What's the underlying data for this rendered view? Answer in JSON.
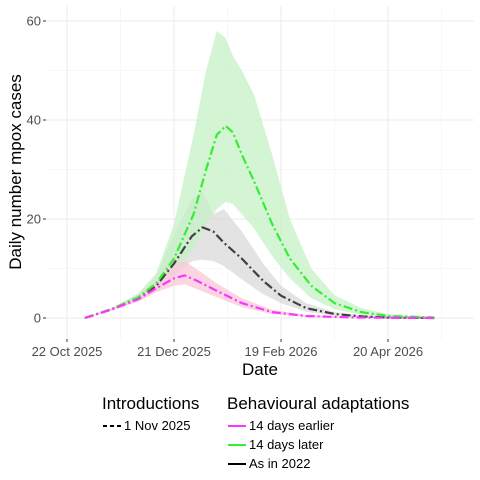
{
  "chart_data": {
    "type": "line",
    "xlabel": "Date",
    "ylabel": "Daily number mpox cases",
    "x_ticks": [
      "22 Oct 2025",
      "21 Dec 2025",
      "19 Feb 2026",
      "20 Apr 2026"
    ],
    "ylim": [
      0,
      60
    ],
    "y_ticks": [
      0,
      20,
      40,
      60
    ],
    "grid": true,
    "legend_position": "bottom",
    "legend": {
      "introductions": {
        "title": "Introductions",
        "items": [
          {
            "label": "1 Nov 2025",
            "linetype": "dashed"
          }
        ]
      },
      "adaptations": {
        "title": "Behavioural adaptations",
        "items": [
          {
            "label": "14 days earlier",
            "color": "#ff33ff"
          },
          {
            "label": "14 days later",
            "color": "#33ee33"
          },
          {
            "label": "As in 2022",
            "color": "#000000"
          }
        ]
      }
    },
    "series": [
      {
        "name": "As in 2022",
        "color": "#404040",
        "fill": "#d9d9d9",
        "points": [
          {
            "date": "2025-11-01",
            "y": 0,
            "lo": 0,
            "hi": 0
          },
          {
            "date": "2025-11-16",
            "y": 1.8,
            "lo": 1.6,
            "hi": 2
          },
          {
            "date": "2025-12-01",
            "y": 4,
            "lo": 3.5,
            "hi": 4.8
          },
          {
            "date": "2025-12-11",
            "y": 6.5,
            "lo": 5.5,
            "hi": 8.5
          },
          {
            "date": "2025-12-21",
            "y": 11,
            "lo": 8.5,
            "hi": 17
          },
          {
            "date": "2025-12-31",
            "y": 16.5,
            "lo": 11.5,
            "hi": 24
          },
          {
            "date": "2026-01-06",
            "y": 18.3,
            "lo": 11.8,
            "hi": 25.5
          },
          {
            "date": "2026-01-12",
            "y": 17.5,
            "lo": 11.5,
            "hi": 21
          },
          {
            "date": "2026-01-18",
            "y": 15.2,
            "lo": 10.5,
            "hi": 22
          },
          {
            "date": "2026-01-28",
            "y": 12,
            "lo": 7.8,
            "hi": 17.5
          },
          {
            "date": "2026-02-09",
            "y": 7.5,
            "lo": 4.8,
            "hi": 11
          },
          {
            "date": "2026-02-19",
            "y": 4.5,
            "lo": 3,
            "hi": 6.5
          },
          {
            "date": "2026-03-05",
            "y": 2,
            "lo": 1.3,
            "hi": 3
          },
          {
            "date": "2026-03-21",
            "y": 0.8,
            "lo": 0.5,
            "hi": 1.2
          },
          {
            "date": "2026-04-06",
            "y": 0.3,
            "lo": 0.2,
            "hi": 0.5
          },
          {
            "date": "2026-04-20",
            "y": 0.1,
            "lo": 0,
            "hi": 0.2
          },
          {
            "date": "2026-05-16",
            "y": 0,
            "lo": 0,
            "hi": 0.1
          }
        ]
      },
      {
        "name": "14 days later",
        "color": "#33ee33",
        "fill": "#c6f2c6",
        "points": [
          {
            "date": "2025-11-01",
            "y": 0,
            "lo": 0,
            "hi": 0
          },
          {
            "date": "2025-11-16",
            "y": 1.8,
            "lo": 1.6,
            "hi": 2
          },
          {
            "date": "2025-12-01",
            "y": 4.2,
            "lo": 3.6,
            "hi": 5
          },
          {
            "date": "2025-12-11",
            "y": 7,
            "lo": 6,
            "hi": 9
          },
          {
            "date": "2025-12-21",
            "y": 12,
            "lo": 9.5,
            "hi": 19
          },
          {
            "date": "2026-01-01",
            "y": 21,
            "lo": 14,
            "hi": 37
          },
          {
            "date": "2026-01-08",
            "y": 30,
            "lo": 19,
            "hi": 50
          },
          {
            "date": "2026-01-14",
            "y": 37,
            "lo": 22,
            "hi": 58
          },
          {
            "date": "2026-01-19",
            "y": 38.8,
            "lo": 23.5,
            "hi": 56.5
          },
          {
            "date": "2026-01-23",
            "y": 37.5,
            "lo": 23,
            "hi": 53
          },
          {
            "date": "2026-01-28",
            "y": 33,
            "lo": 21,
            "hi": 50
          },
          {
            "date": "2026-02-04",
            "y": 27.5,
            "lo": 18,
            "hi": 45
          },
          {
            "date": "2026-02-14",
            "y": 19,
            "lo": 12.5,
            "hi": 33
          },
          {
            "date": "2026-02-24",
            "y": 12,
            "lo": 8,
            "hi": 20
          },
          {
            "date": "2026-03-08",
            "y": 6.5,
            "lo": 4,
            "hi": 10
          },
          {
            "date": "2026-03-21",
            "y": 3,
            "lo": 1.8,
            "hi": 4.6
          },
          {
            "date": "2026-04-05",
            "y": 1.2,
            "lo": 0.6,
            "hi": 2
          },
          {
            "date": "2026-04-20",
            "y": 0.4,
            "lo": 0.2,
            "hi": 0.8
          },
          {
            "date": "2026-05-16",
            "y": 0.1,
            "lo": 0,
            "hi": 0.2
          }
        ]
      },
      {
        "name": "14 days earlier",
        "color": "#ff33ff",
        "fill": "#f8c8d8",
        "points": [
          {
            "date": "2025-11-01",
            "y": 0,
            "lo": 0,
            "hi": 0
          },
          {
            "date": "2025-11-16",
            "y": 1.7,
            "lo": 1.5,
            "hi": 1.9
          },
          {
            "date": "2025-12-01",
            "y": 3.8,
            "lo": 3.3,
            "hi": 4.4
          },
          {
            "date": "2025-12-11",
            "y": 6,
            "lo": 5.2,
            "hi": 7.5
          },
          {
            "date": "2025-12-21",
            "y": 8,
            "lo": 6.5,
            "hi": 11
          },
          {
            "date": "2025-12-27",
            "y": 8.6,
            "lo": 6.8,
            "hi": 11.5
          },
          {
            "date": "2026-01-03",
            "y": 7.5,
            "lo": 5.8,
            "hi": 9.8
          },
          {
            "date": "2026-01-14",
            "y": 5.5,
            "lo": 4.2,
            "hi": 7
          },
          {
            "date": "2026-01-28",
            "y": 3,
            "lo": 2.2,
            "hi": 4
          },
          {
            "date": "2026-02-14",
            "y": 1.2,
            "lo": 0.8,
            "hi": 1.7
          },
          {
            "date": "2026-03-05",
            "y": 0.4,
            "lo": 0.2,
            "hi": 0.6
          },
          {
            "date": "2026-04-01",
            "y": 0.1,
            "lo": 0,
            "hi": 0.2
          },
          {
            "date": "2026-05-16",
            "y": 0,
            "lo": 0,
            "hi": 0
          }
        ]
      }
    ]
  }
}
